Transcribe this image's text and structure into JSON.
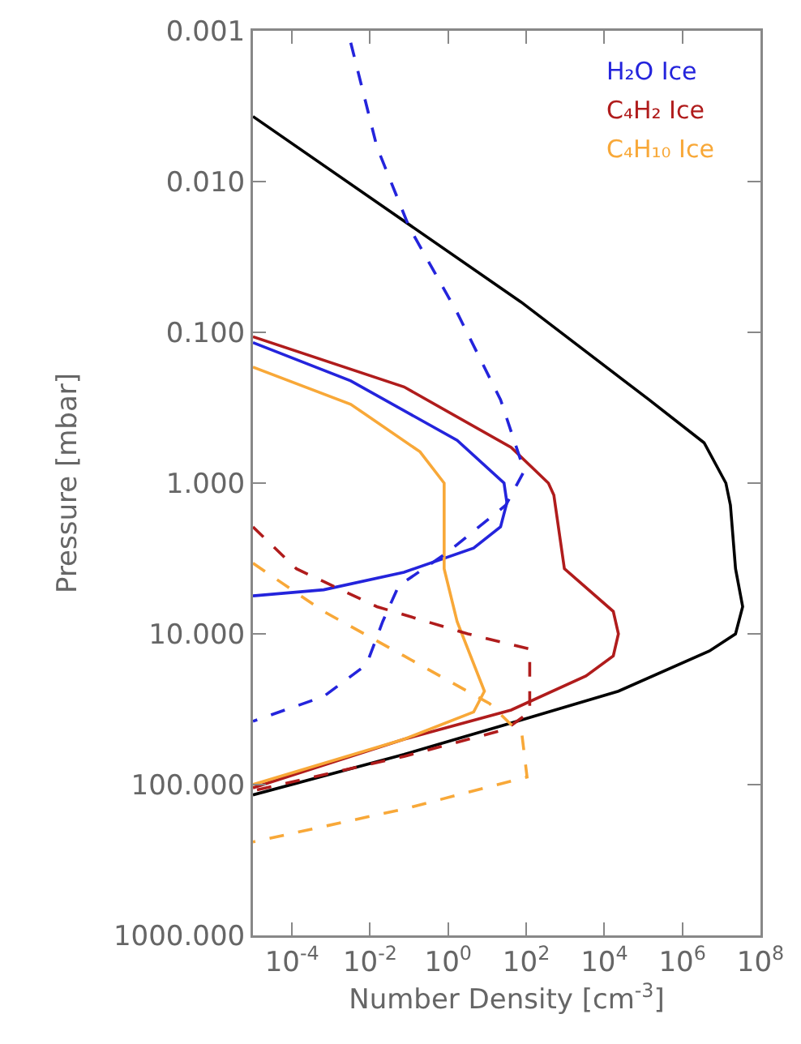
{
  "chart_data": {
    "type": "line",
    "xlabel": "Number Density [cm$^{-3}$]",
    "ylabel": "Pressure [mbar]",
    "log": "xy",
    "grid": false,
    "legend": "top right",
    "xlim": [
      1e-05,
      100000000.0
    ],
    "xticks": [
      {
        "value": 0.0001,
        "label": "10$^{-4}$"
      },
      {
        "value": 0.01,
        "label": "10$^{-2}$"
      },
      {
        "value": 1,
        "label": "10$^{0}$"
      },
      {
        "value": 100,
        "label": "10$^{2}$"
      },
      {
        "value": 10000.0,
        "label": "10$^{4}$"
      },
      {
        "value": 1000000.0,
        "label": "10$^{6}$"
      },
      {
        "value": 100000000.0,
        "label": "10$^{8}$"
      }
    ],
    "ylim": [
      1000,
      0.001
    ],
    "yticks": [
      0.001,
      {
        "value": 0.01,
        "label": "0.010"
      },
      {
        "value": 0.1,
        "label": "0.100"
      },
      {
        "value": 1,
        "label": "1.000"
      },
      {
        "value": 10,
        "label": "10.000"
      },
      {
        "value": 100,
        "label": "100.000"
      },
      {
        "value": 1000,
        "label": "1000.000"
      }
    ],
    "series": [
      {
        "color": "#000000",
        "line_style": "solid",
        "x": [
          1e-05,
          74,
          140000.0,
          3600000.0,
          13000000.0,
          17000000.0,
          23000000.0,
          35000000.0,
          23000000.0,
          4900000.0,
          23000.0,
          41,
          0.074,
          1e-05
        ],
        "values": [
          0.0037,
          0.063,
          0.28,
          0.54,
          1.0,
          1.4,
          3.7,
          6.6,
          10,
          13,
          24,
          39,
          63,
          117
        ]
      },
      {
        "name": "H₂O Ice",
        "color": "#2424dc",
        "line_style": "solid",
        "x": [
          1e-05,
          0.0032,
          1.7,
          27,
          32,
          22,
          4.5,
          0.074,
          0.00065,
          1e-05
        ],
        "values": [
          0.117,
          0.21,
          0.52,
          1.0,
          1.35,
          1.95,
          2.7,
          3.9,
          5.1,
          5.6
        ]
      },
      {
        "name": "C₄H₂ Ice",
        "color": "#b01c1c",
        "line_style": "solid",
        "x": [
          1e-05,
          0.074,
          41,
          370,
          510,
          950,
          17000.0,
          23000.0,
          17000.0,
          3400,
          41,
          0.074,
          1e-05
        ],
        "values": [
          0.107,
          0.23,
          0.58,
          1.0,
          1.2,
          3.7,
          7.1,
          10,
          14,
          19,
          32,
          50,
          105
        ]
      },
      {
        "name": "C₄H₁₀ Ice",
        "color": "#f8a838",
        "line_style": "solid",
        "x": [
          1e-05,
          0.0032,
          0.19,
          0.79,
          0.79,
          1.7,
          8.5,
          4.5,
          0.074,
          1e-05
        ],
        "values": [
          0.17,
          0.3,
          0.62,
          1.0,
          3.7,
          8.3,
          24,
          33,
          50,
          100
        ]
      },
      {
        "color": "#2424dc",
        "line_style": "dashed",
        "x": [
          0.0032,
          0.015,
          0.1,
          1.7,
          22,
          89,
          30,
          0.93,
          0.054,
          0.021,
          0.0081,
          0.00065,
          1e-05
        ],
        "values": [
          0.0012,
          0.0059,
          0.02,
          0.074,
          0.28,
          0.83,
          1.4,
          2.9,
          4.8,
          8.3,
          16,
          26,
          38
        ]
      },
      {
        "color": "#b01c1c",
        "line_style": "dashed",
        "x": [
          1e-05,
          0.00013,
          0.015,
          3.2,
          123,
          123,
          30,
          0.074,
          1e-05
        ],
        "values": [
          1.95,
          3.7,
          6.6,
          10,
          12.6,
          33,
          43,
          65,
          110
        ]
      },
      {
        "color": "#f8a838",
        "line_style": "dashed",
        "x": [
          1e-05,
          0.00065,
          0.074,
          11.5,
          78,
          105,
          0.074,
          1e-05
        ],
        "values": [
          3.4,
          7.1,
          14,
          29,
          47,
          89,
          145,
          240
        ]
      }
    ]
  }
}
